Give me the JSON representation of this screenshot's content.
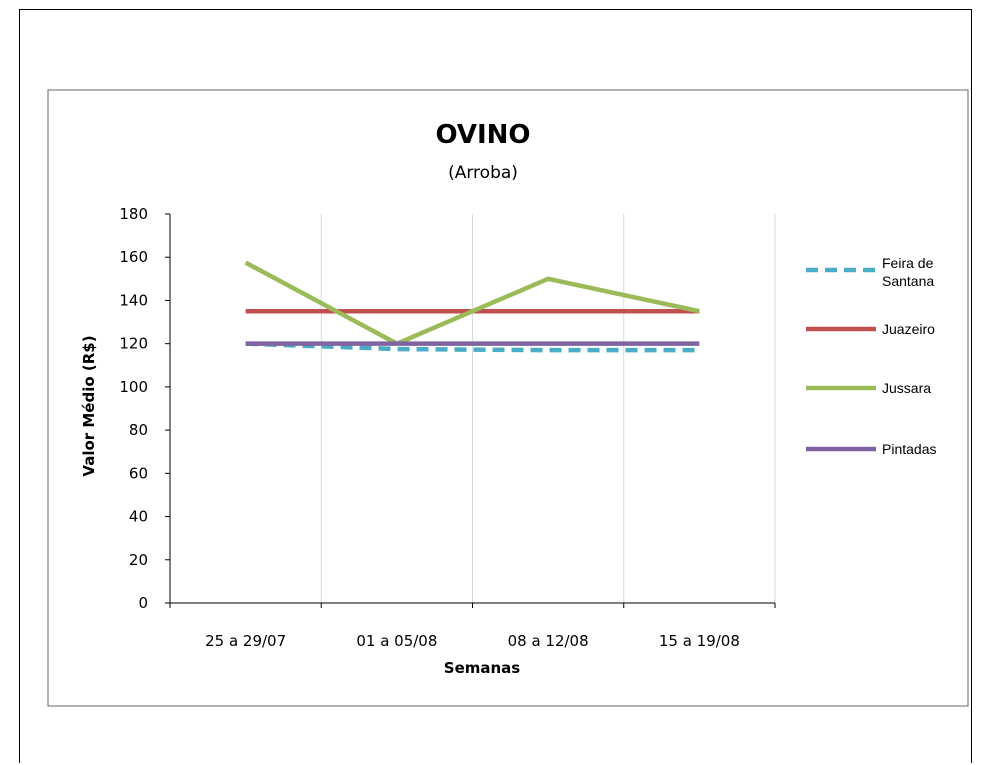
{
  "chart_data": {
    "type": "line",
    "title": "OVINO",
    "subtitle": "(Arroba)",
    "xlabel": "Semanas",
    "ylabel": "Valor Médio (R$)",
    "categories": [
      "25 a 29/07",
      "01 a 05/08",
      "08 a 12/08",
      "15 a 19/08"
    ],
    "ylim": [
      0,
      180
    ],
    "yticks": [
      0,
      20,
      40,
      60,
      80,
      100,
      120,
      140,
      160,
      180
    ],
    "grid": "vertical",
    "legend_position": "right",
    "series": [
      {
        "name": "Feira de Santana",
        "legend_lines": [
          "Feira de",
          "Santana"
        ],
        "values": [
          120,
          117.5,
          117,
          117
        ],
        "color": "#4bacc6",
        "dashed": true
      },
      {
        "name": "Juazeiro",
        "legend_lines": [
          "Juazeiro"
        ],
        "values": [
          135,
          135,
          135,
          135
        ],
        "color": "#c0504d",
        "dashed": false
      },
      {
        "name": "Jussara",
        "legend_lines": [
          "Jussara"
        ],
        "values": [
          157.5,
          120,
          150,
          135
        ],
        "color": "#9bbb59",
        "dashed": false
      },
      {
        "name": "Pintadas",
        "legend_lines": [
          "Pintadas"
        ],
        "values": [
          120,
          120,
          120,
          120
        ],
        "color": "#8064a2",
        "dashed": false
      }
    ]
  }
}
